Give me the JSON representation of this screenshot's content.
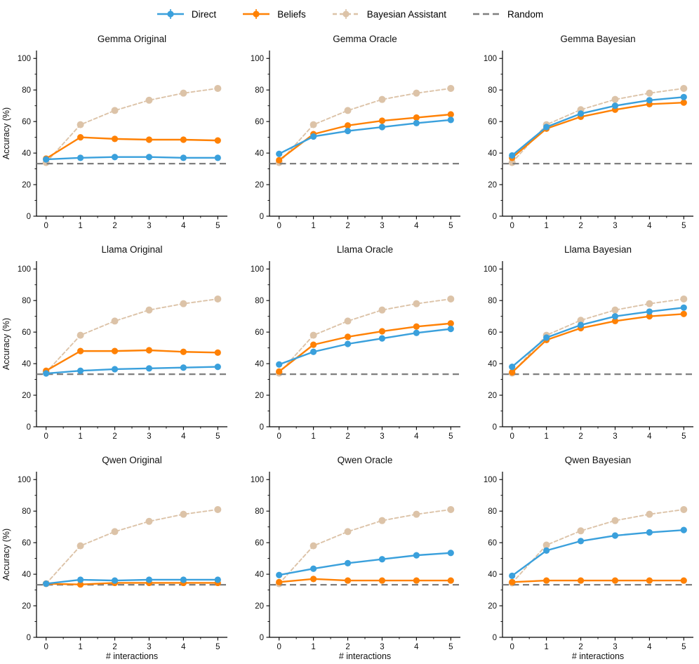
{
  "figure": {
    "ylabel": "Accuracy (%)",
    "xlabel": "# interactions"
  },
  "legend": {
    "items": [
      {
        "key": "direct",
        "label": "Direct"
      },
      {
        "key": "beliefs",
        "label": "Beliefs"
      },
      {
        "key": "bayesian_assistant",
        "label": "Bayesian Assistant"
      },
      {
        "key": "random",
        "label": "Random"
      }
    ]
  },
  "series_styles": {
    "direct": {
      "color": "#3AA0DC",
      "dashed": false,
      "marker": "circle"
    },
    "beliefs": {
      "color": "#FF8104",
      "dashed": false,
      "marker": "circle"
    },
    "bayesian_assistant": {
      "color": "#DCC3A8",
      "dashed": true,
      "marker": "circle"
    },
    "random": {
      "color": "#7F7F7F",
      "dashed": true,
      "marker": "none"
    }
  },
  "chart_data": {
    "type": "line",
    "x": [
      0,
      1,
      2,
      3,
      4,
      5
    ],
    "xlabel": "# interactions",
    "ylabel": "Accuracy (%)",
    "ylim": [
      0,
      105
    ],
    "xlim": [
      -0.28,
      5.28
    ],
    "yticks": [
      0,
      20,
      40,
      60,
      80,
      100
    ],
    "yticks_minor": [
      10,
      30,
      50,
      70,
      90
    ],
    "xticks": [
      0,
      1,
      2,
      3,
      4,
      5
    ],
    "xticks_minor": [
      0.5,
      1.5,
      2.5,
      3.5,
      4.5
    ],
    "grid": false,
    "legend_position": "top center",
    "random_baseline": 33.3,
    "charts": [
      {
        "title": "Gemma Original",
        "series": [
          {
            "key": "direct",
            "name": "Direct",
            "values": [
              36,
              37,
              37.5,
              37.5,
              37,
              37
            ]
          },
          {
            "key": "beliefs",
            "name": "Beliefs",
            "values": [
              36.5,
              50,
              49,
              48.5,
              48.5,
              48
            ]
          },
          {
            "key": "bayesian_assistant",
            "name": "Bayesian Assistant",
            "values": [
              34,
              58,
              67,
              73.5,
              78,
              81
            ]
          }
        ],
        "random": 33.3
      },
      {
        "title": "Gemma Oracle",
        "series": [
          {
            "key": "direct",
            "name": "Direct",
            "values": [
              39.5,
              50.5,
              54,
              56.5,
              59,
              61
            ]
          },
          {
            "key": "beliefs",
            "name": "Beliefs",
            "values": [
              35.5,
              52,
              57.5,
              60.5,
              62.5,
              64.5
            ]
          },
          {
            "key": "bayesian_assistant",
            "name": "Bayesian Assistant",
            "values": [
              34,
              58,
              67,
              74,
              78,
              81
            ]
          }
        ],
        "random": 33.3
      },
      {
        "title": "Gemma Bayesian",
        "series": [
          {
            "key": "direct",
            "name": "Direct",
            "values": [
              38.5,
              56.5,
              65,
              70,
              73.5,
              75.5
            ]
          },
          {
            "key": "beliefs",
            "name": "Beliefs",
            "values": [
              37,
              55.5,
              63,
              67.5,
              71,
              72
            ]
          },
          {
            "key": "bayesian_assistant",
            "name": "Bayesian Assistant",
            "values": [
              34,
              58,
              67.5,
              74,
              78,
              81
            ]
          }
        ],
        "random": 33.3
      },
      {
        "title": "Llama Original",
        "series": [
          {
            "key": "direct",
            "name": "Direct",
            "values": [
              33.8,
              35.5,
              36.5,
              37,
              37.5,
              38
            ]
          },
          {
            "key": "beliefs",
            "name": "Beliefs",
            "values": [
              35.5,
              48,
              48,
              48.5,
              47.5,
              47
            ]
          },
          {
            "key": "bayesian_assistant",
            "name": "Bayesian Assistant",
            "values": [
              34.5,
              58,
              67,
              74,
              78,
              81
            ]
          }
        ],
        "random": 33.3
      },
      {
        "title": "Llama Oracle",
        "series": [
          {
            "key": "direct",
            "name": "Direct",
            "values": [
              39.5,
              47.5,
              52.5,
              56,
              59.5,
              62
            ]
          },
          {
            "key": "beliefs",
            "name": "Beliefs",
            "values": [
              35,
              52,
              57,
              60.5,
              63.5,
              65.5
            ]
          },
          {
            "key": "bayesian_assistant",
            "name": "Bayesian Assistant",
            "values": [
              34,
              58,
              67,
              74,
              78,
              81
            ]
          }
        ],
        "random": 33.3
      },
      {
        "title": "Llama Bayesian",
        "series": [
          {
            "key": "direct",
            "name": "Direct",
            "values": [
              38,
              56.5,
              64.5,
              70,
              73,
              75.5
            ]
          },
          {
            "key": "beliefs",
            "name": "Beliefs",
            "values": [
              34.5,
              55,
              62.5,
              67,
              70,
              71.5
            ]
          },
          {
            "key": "bayesian_assistant",
            "name": "Bayesian Assistant",
            "values": [
              34,
              58,
              67.5,
              74,
              78,
              81
            ]
          }
        ],
        "random": 33.3
      },
      {
        "title": "Qwen Original",
        "series": [
          {
            "key": "direct",
            "name": "Direct",
            "values": [
              34,
              36.5,
              36,
              36.5,
              36.5,
              36.5
            ]
          },
          {
            "key": "beliefs",
            "name": "Beliefs",
            "values": [
              34,
              33.5,
              34.5,
              34.5,
              34.5,
              34.5
            ]
          },
          {
            "key": "bayesian_assistant",
            "name": "Bayesian Assistant",
            "values": [
              34,
              58,
              67,
              73.5,
              78,
              81
            ]
          }
        ],
        "random": 33.3
      },
      {
        "title": "Qwen Oracle",
        "series": [
          {
            "key": "direct",
            "name": "Direct",
            "values": [
              39.5,
              43.5,
              47,
              49.5,
              52,
              53.5
            ]
          },
          {
            "key": "beliefs",
            "name": "Beliefs",
            "values": [
              35,
              37,
              36,
              36,
              36,
              36
            ]
          },
          {
            "key": "bayesian_assistant",
            "name": "Bayesian Assistant",
            "values": [
              34,
              58,
              67,
              74,
              78,
              81
            ]
          }
        ],
        "random": 33.3
      },
      {
        "title": "Qwen Bayesian",
        "series": [
          {
            "key": "direct",
            "name": "Direct",
            "values": [
              39,
              55,
              61,
              64.5,
              66.5,
              68
            ]
          },
          {
            "key": "beliefs",
            "name": "Beliefs",
            "values": [
              35,
              36,
              36,
              36,
              36,
              36
            ]
          },
          {
            "key": "bayesian_assistant",
            "name": "Bayesian Assistant",
            "values": [
              34.5,
              58.5,
              67.5,
              74,
              78,
              81
            ]
          }
        ],
        "random": 33.3
      }
    ]
  }
}
